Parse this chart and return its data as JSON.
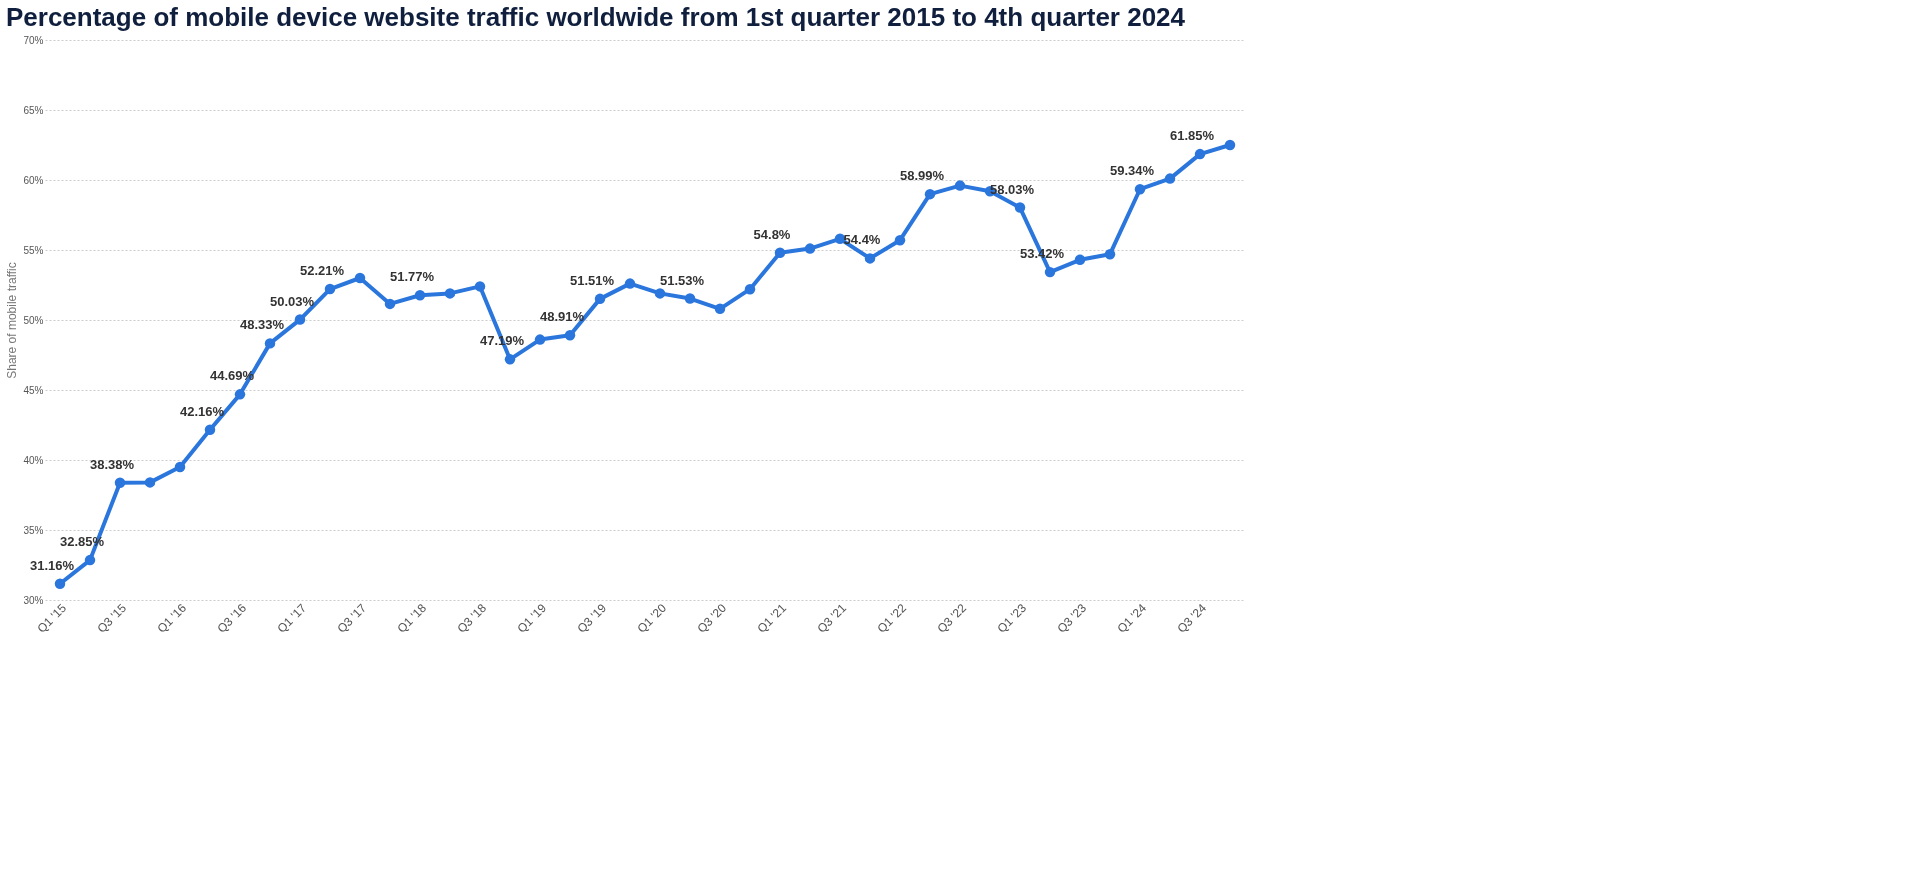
{
  "chart_data": {
    "type": "line",
    "title": "Percentage of mobile device website traffic worldwide from 1st quarter 2015 to 4th quarter 2024",
    "ylabel": "Share of mobile traffic",
    "categories": [
      "Q1 '15",
      null,
      "Q3 '15",
      null,
      "Q1 '16",
      null,
      "Q3 '16",
      null,
      "Q1 '17",
      null,
      "Q3 '17",
      null,
      "Q1 '18",
      null,
      "Q3 '18",
      null,
      "Q1 '19",
      null,
      "Q3 '19",
      null,
      "Q1 '20",
      null,
      "Q3 '20",
      null,
      "Q1 '21",
      null,
      "Q3 '21",
      null,
      "Q1 '22",
      null,
      "Q3 '22",
      null,
      "Q1 '23",
      null,
      "Q3 '23",
      null,
      "Q1 '24",
      null,
      "Q3 '24",
      null
    ],
    "series": [
      {
        "color": "#2a76dd",
        "values": [
          31.16,
          32.85,
          38.38,
          38.4,
          39.5,
          42.16,
          44.69,
          48.33,
          50.03,
          52.21,
          53.0,
          51.15,
          51.77,
          51.9,
          52.4,
          47.19,
          48.6,
          48.91,
          51.51,
          52.6,
          51.9,
          51.53,
          50.8,
          52.2,
          54.8,
          55.1,
          55.8,
          54.4,
          55.7,
          58.99,
          59.6,
          59.2,
          58.03,
          53.42,
          54.3,
          54.7,
          59.34,
          60.1,
          61.85,
          62.5
        ],
        "value_labels": [
          "31.16%",
          "32.85%",
          "38.38%",
          null,
          null,
          "42.16%",
          "44.69%",
          "48.33%",
          "50.03%",
          "52.21%",
          null,
          null,
          "51.77%",
          null,
          null,
          "47.19%",
          null,
          "48.91%",
          "51.51%",
          null,
          null,
          "51.53%",
          null,
          null,
          "54.8%",
          null,
          null,
          "54.4%",
          null,
          "58.99%",
          null,
          null,
          "58.03%",
          "53.42%",
          null,
          null,
          "59.34%",
          null,
          "61.85%",
          null
        ]
      }
    ],
    "ylim": [
      30,
      70
    ],
    "yticks": [
      {
        "value": 30,
        "label": "30%"
      },
      {
        "value": 35,
        "label": "35%"
      },
      {
        "value": 40,
        "label": "40%"
      },
      {
        "value": 45,
        "label": "45%"
      },
      {
        "value": 50,
        "label": "50%"
      },
      {
        "value": 55,
        "label": "55%"
      },
      {
        "value": 60,
        "label": "60%"
      },
      {
        "value": 65,
        "label": "65%"
      },
      {
        "value": 70,
        "label": "70%"
      }
    ],
    "grid": "y",
    "marker": "circle",
    "line_style": "solid"
  }
}
